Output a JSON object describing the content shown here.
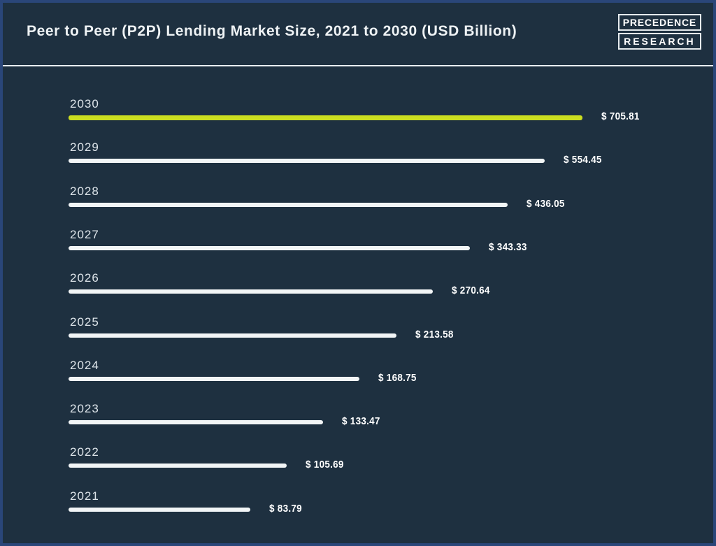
{
  "header": {
    "title": "Peer to Peer (P2P) Lending Market Size, 2021 to 2030 (USD Billion)",
    "logo": {
      "line1": "PRECEDENCE",
      "line2": "RESEARCH"
    }
  },
  "colors": {
    "background": "#1e3040",
    "border": "#2a4679",
    "divider": "#e9eef2",
    "text": "#eef2f4",
    "year_text": "#dde4e9",
    "value_text": "#ffffff",
    "bar": "#f2f5f6",
    "highlight_bar": "#cbdd20"
  },
  "chart_data": {
    "type": "bar",
    "orientation": "horizontal",
    "title": "Peer to Peer (P2P) Lending Market Size, 2021 to 2030 (USD Billion)",
    "unit": "USD Billion",
    "categories": [
      "2030",
      "2029",
      "2028",
      "2027",
      "2026",
      "2025",
      "2024",
      "2023",
      "2022",
      "2021"
    ],
    "values": [
      705.81,
      554.45,
      436.05,
      343.33,
      270.64,
      213.58,
      168.75,
      133.47,
      105.69,
      83.79
    ],
    "value_labels": [
      "$ 705.81",
      "$ 554.45",
      "$ 436.05",
      "$ 343.33",
      "$ 270.64",
      "$ 213.58",
      "$ 168.75",
      "$ 133.47",
      "$ 105.69",
      "$ 83.79"
    ],
    "highlight_category": "2030",
    "highlight_color": "#cbdd20",
    "default_bar_color": "#f2f5f6",
    "x_axis_visible": false,
    "gridlines": false,
    "legend": "none",
    "x_scale_appearance": "logarithmic"
  }
}
